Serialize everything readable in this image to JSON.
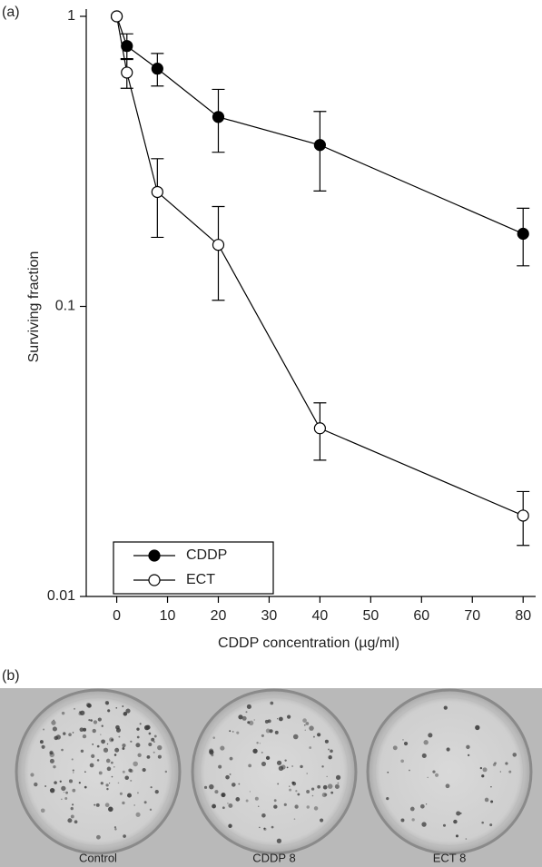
{
  "chart_data": {
    "type": "line",
    "panel_label": "(a)",
    "x_label": "CDDP concentration (µg/ml)",
    "y_label": "Surviving fraction",
    "x": [
      0,
      2,
      8,
      20,
      40,
      80
    ],
    "series": [
      {
        "name": "CDDP",
        "color": "#000000",
        "marker_fill": "#000000",
        "values": [
          1,
          0.79,
          0.66,
          0.45,
          0.36,
          0.178
        ],
        "errors": [
          null,
          0.08,
          0.085,
          0.11,
          0.11,
          0.04
        ]
      },
      {
        "name": "ECT",
        "color": "#000000",
        "marker_fill": "#ffffff",
        "values": [
          1,
          0.64,
          0.248,
          0.163,
          0.038,
          0.019
        ],
        "errors": [
          null,
          0.075,
          0.075,
          0.058,
          0.0085,
          0.004
        ]
      }
    ],
    "xlim": [
      -6,
      83
    ],
    "xticks": [
      0,
      10,
      20,
      30,
      40,
      50,
      60,
      70,
      80
    ],
    "ylim": [
      0.01,
      1
    ],
    "yticks": [
      0.01,
      0.1,
      1
    ],
    "log_y": true,
    "grid": false,
    "legend": "lower left"
  },
  "photo": {
    "panel_label": "(b)",
    "dishes": [
      "Control",
      "CDDP 8",
      "ECT 8"
    ]
  }
}
